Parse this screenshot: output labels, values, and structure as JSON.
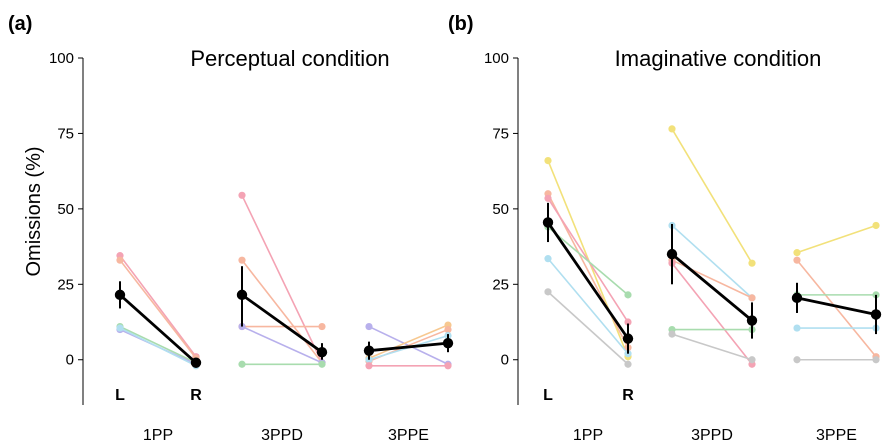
{
  "figure": {
    "ylabel": "Omissions (%)",
    "side_labels": [
      "L",
      "R"
    ]
  },
  "chart_data": [
    {
      "type": "line",
      "panel": "(a)",
      "title": "Perceptual condition",
      "ylabel": "Omissions (%)",
      "ylim": [
        -15,
        100
      ],
      "yticks": [
        0,
        25,
        50,
        75,
        100
      ],
      "groups": [
        {
          "label": "1PP",
          "x": [
            "L",
            "R"
          ],
          "mean": [
            21.5,
            -1
          ],
          "err_low": [
            17,
            -2.2
          ],
          "err_high": [
            26,
            0.2
          ],
          "subjects": [
            {
              "color": "#f4a3b4",
              "values": [
                34.5,
                1
              ]
            },
            {
              "color": "#f7b7a0",
              "values": [
                33,
                0.5
              ]
            },
            {
              "color": "#a8dcae",
              "values": [
                11,
                -1
              ]
            },
            {
              "color": "#b8b0ec",
              "values": [
                10,
                -1.5
              ]
            },
            {
              "color": "#b0dff0",
              "values": [
                10.5,
                -2
              ]
            }
          ]
        },
        {
          "label": "3PPD",
          "x": [
            "L",
            "R"
          ],
          "mean": [
            21.5,
            2.5
          ],
          "err_low": [
            11,
            0
          ],
          "err_high": [
            31,
            5.5
          ],
          "subjects": [
            {
              "color": "#f4a3b4",
              "values": [
                54.5,
                -1
              ]
            },
            {
              "color": "#f7b7a0",
              "values": [
                33,
                -1
              ]
            },
            {
              "color": "#f7b7a0",
              "values": [
                11,
                11
              ]
            },
            {
              "color": "#b8b0ec",
              "values": [
                11,
                -1
              ]
            },
            {
              "color": "#a8dcae",
              "values": [
                -1.5,
                -1.5
              ]
            }
          ]
        },
        {
          "label": "3PPE",
          "x": [
            "L",
            "R"
          ],
          "mean": [
            3,
            5.5
          ],
          "err_low": [
            0,
            2.5
          ],
          "err_high": [
            6,
            8.5
          ],
          "subjects": [
            {
              "color": "#b8b0ec",
              "values": [
                11,
                -1.5
              ]
            },
            {
              "color": "#f7c890",
              "values": [
                0.5,
                11.5
              ]
            },
            {
              "color": "#f7b7a0",
              "values": [
                -0.5,
                10
              ]
            },
            {
              "color": "#b0dff0",
              "values": [
                0,
                8
              ]
            },
            {
              "color": "#f4a3b4",
              "values": [
                -2,
                -2
              ]
            }
          ]
        }
      ]
    },
    {
      "type": "line",
      "panel": "(b)",
      "title": "Imaginative condition",
      "ylabel": "",
      "ylim": [
        -15,
        100
      ],
      "yticks": [
        0,
        25,
        50,
        75,
        100
      ],
      "groups": [
        {
          "label": "1PP",
          "x": [
            "L",
            "R"
          ],
          "mean": [
            45.5,
            7
          ],
          "err_low": [
            39,
            2
          ],
          "err_high": [
            52,
            12
          ],
          "subjects": [
            {
              "color": "#f2e17a",
              "values": [
                66,
                1
              ]
            },
            {
              "color": "#f7b7a0",
              "values": [
                55,
                4
              ]
            },
            {
              "color": "#f4a3b4",
              "values": [
                53.5,
                12.5
              ]
            },
            {
              "color": "#b0dff0",
              "values": [
                33.5,
                2
              ]
            },
            {
              "color": "#a8dcae",
              "values": [
                44,
                21.5
              ]
            },
            {
              "color": "#c8c8c8",
              "values": [
                22.5,
                -1.5
              ]
            }
          ]
        },
        {
          "label": "3PPD",
          "x": [
            "L",
            "R"
          ],
          "mean": [
            35,
            13
          ],
          "err_low": [
            25,
            7
          ],
          "err_high": [
            45,
            19
          ],
          "subjects": [
            {
              "color": "#f2e17a",
              "values": [
                76.5,
                32
              ]
            },
            {
              "color": "#b0dff0",
              "values": [
                44.5,
                20.5
              ]
            },
            {
              "color": "#f7b7a0",
              "values": [
                33,
                20.5
              ]
            },
            {
              "color": "#f4a3b4",
              "values": [
                32,
                -1.5
              ]
            },
            {
              "color": "#a8dcae",
              "values": [
                10,
                10
              ]
            },
            {
              "color": "#c8c8c8",
              "values": [
                8.5,
                0
              ]
            }
          ]
        },
        {
          "label": "3PPE",
          "x": [
            "L",
            "R"
          ],
          "mean": [
            20.5,
            15
          ],
          "err_low": [
            15.5,
            8.5
          ],
          "err_high": [
            25.5,
            21.5
          ],
          "subjects": [
            {
              "color": "#f2e17a",
              "values": [
                35.5,
                44.5
              ]
            },
            {
              "color": "#f7b7a0",
              "values": [
                33,
                1
              ]
            },
            {
              "color": "#a8dcae",
              "values": [
                21.5,
                21.5
              ]
            },
            {
              "color": "#b0dff0",
              "values": [
                10.5,
                10.5
              ]
            },
            {
              "color": "#c8c8c8",
              "values": [
                0,
                0
              ]
            }
          ]
        }
      ]
    }
  ]
}
